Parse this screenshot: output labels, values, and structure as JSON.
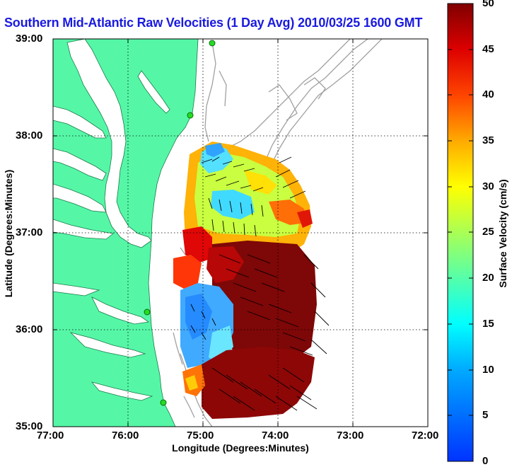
{
  "title": "Southern Mid-Atlantic Raw Velocities (1 Day Avg) 2010/03/25 1600 GMT",
  "axes": {
    "xlabel": "Longitude (Degrees:Minutes)",
    "ylabel": "Latitude (Degrees:Minutes)",
    "xticks": [
      "77:00",
      "76:00",
      "75:00",
      "74:00",
      "73:00",
      "72:00"
    ],
    "yticks": [
      "39:00",
      "38:00",
      "37:00",
      "36:00",
      "35:00"
    ]
  },
  "colorbar": {
    "label": "Surface Velocity (cm/s)",
    "ticks": [
      "50",
      "45",
      "40",
      "35",
      "30",
      "25",
      "20",
      "15",
      "10",
      "5",
      "0"
    ],
    "min": 0,
    "max": 50
  },
  "colors": {
    "land": "#55f7a6",
    "title": "#1a1ae0",
    "bathymetry": "#a0a0a0",
    "station": "#22dd22"
  }
}
